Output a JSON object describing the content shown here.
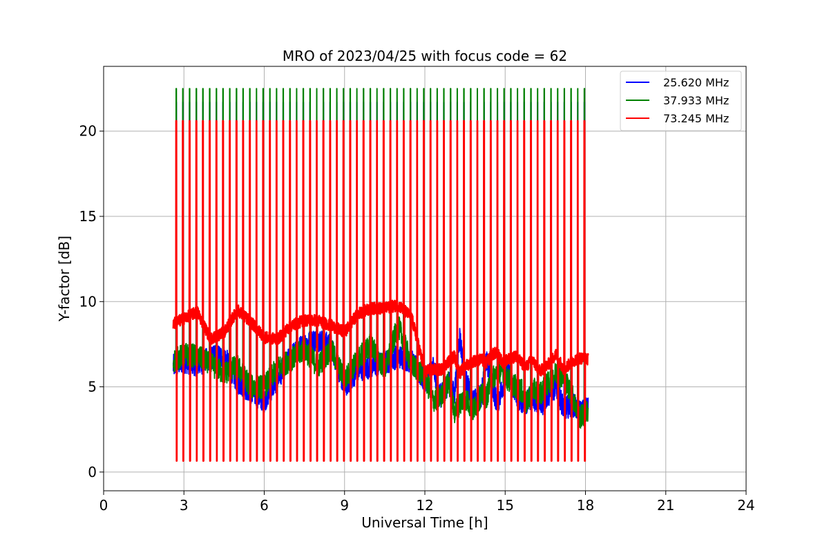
{
  "chart_data": {
    "type": "line",
    "title": "MRO of 2023/04/25 with focus code = 62",
    "xlabel": "Universal Time [h]",
    "ylabel": "Y-factor [dB]",
    "xlim": [
      0,
      24
    ],
    "ylim": [
      -1.1,
      23.8
    ],
    "xticks": [
      0,
      3,
      6,
      9,
      12,
      15,
      18,
      21,
      24
    ],
    "yticks": [
      0,
      5,
      10,
      15,
      20
    ],
    "grid": true,
    "legend_position": "top-right",
    "calibration_pulses": {
      "start_h": 2.72,
      "period_h": 0.25,
      "count": 62,
      "width_h": 0.035
    },
    "series": [
      {
        "name": "25.620 MHz",
        "color": "#0000ff",
        "pulse_high": 21.7,
        "pulse_low": 0.75,
        "x": [
          2.6,
          3.0,
          3.5,
          4.0,
          4.5,
          5.0,
          5.5,
          6.0,
          6.5,
          7.0,
          7.5,
          8.0,
          8.5,
          9.0,
          9.5,
          10.0,
          10.5,
          11.0,
          11.5,
          12.0,
          12.3,
          12.6,
          12.9,
          13.1,
          13.3,
          13.5,
          13.8,
          14.1,
          14.3,
          14.5,
          14.7,
          14.9,
          15.1,
          15.4,
          15.6,
          15.8,
          16.0,
          16.3,
          16.6,
          16.9,
          17.2,
          17.5,
          17.8,
          18.1
        ],
        "y": [
          6.2,
          6.5,
          6.3,
          6.7,
          6.8,
          5.3,
          4.7,
          4.2,
          5.5,
          6.8,
          7.5,
          7.8,
          7.4,
          5.0,
          6.0,
          6.2,
          6.4,
          6.8,
          6.5,
          5.3,
          6.2,
          4.4,
          5.3,
          4.5,
          8.0,
          5.5,
          4.1,
          4.5,
          6.5,
          5.2,
          4.0,
          5.0,
          6.0,
          4.5,
          4.2,
          4.0,
          4.5,
          3.8,
          4.5,
          5.0,
          3.7,
          4.0,
          3.5,
          3.8
        ]
      },
      {
        "name": "37.933 MHz",
        "color": "#008000",
        "pulse_high": 22.5,
        "pulse_low": 1.2,
        "x": [
          2.6,
          3.0,
          3.5,
          4.0,
          4.5,
          5.0,
          5.5,
          6.0,
          6.5,
          7.0,
          7.5,
          8.0,
          8.5,
          9.0,
          9.5,
          10.0,
          10.5,
          11.0,
          11.5,
          12.0,
          12.3,
          12.6,
          12.9,
          13.1,
          13.3,
          13.5,
          13.8,
          14.1,
          14.3,
          14.5,
          14.7,
          14.9,
          15.1,
          15.4,
          15.6,
          15.8,
          16.0,
          16.3,
          16.6,
          16.9,
          17.2,
          17.5,
          17.8,
          18.1
        ],
        "y": [
          6.5,
          6.9,
          6.8,
          6.3,
          5.8,
          6.2,
          5.0,
          5.0,
          6.1,
          6.6,
          7.2,
          6.2,
          7.2,
          5.4,
          6.6,
          7.5,
          6.0,
          8.6,
          6.3,
          5.6,
          4.2,
          4.4,
          5.3,
          3.5,
          4.0,
          4.4,
          3.6,
          4.5,
          4.4,
          5.5,
          5.8,
          6.0,
          5.4,
          5.0,
          4.8,
          4.0,
          4.9,
          4.6,
          5.2,
          5.8,
          5.5,
          4.5,
          3.2,
          3.6
        ]
      },
      {
        "name": "73.245 MHz",
        "color": "#ff0000",
        "pulse_high": 20.6,
        "pulse_low": 0.65,
        "x": [
          2.6,
          3.0,
          3.5,
          4.0,
          4.5,
          5.0,
          5.5,
          6.0,
          6.5,
          7.0,
          7.5,
          8.0,
          8.5,
          9.0,
          9.5,
          10.0,
          10.5,
          11.0,
          11.5,
          12.0,
          12.3,
          12.6,
          12.9,
          13.1,
          13.3,
          13.5,
          13.8,
          14.1,
          14.3,
          14.5,
          14.7,
          14.9,
          15.1,
          15.4,
          15.6,
          15.8,
          16.0,
          16.3,
          16.6,
          16.9,
          17.2,
          17.5,
          17.8,
          18.1
        ],
        "y": [
          8.7,
          9.0,
          9.4,
          7.8,
          8.2,
          9.5,
          8.8,
          7.9,
          7.8,
          8.6,
          8.9,
          8.9,
          8.6,
          8.2,
          9.3,
          9.6,
          9.6,
          9.8,
          9.1,
          5.9,
          6.0,
          6.0,
          6.5,
          6.8,
          5.8,
          6.2,
          6.5,
          6.6,
          6.4,
          6.9,
          7.0,
          6.4,
          6.6,
          6.8,
          6.4,
          6.2,
          6.6,
          5.9,
          6.3,
          6.9,
          6.0,
          6.5,
          6.7,
          6.6
        ]
      }
    ]
  }
}
